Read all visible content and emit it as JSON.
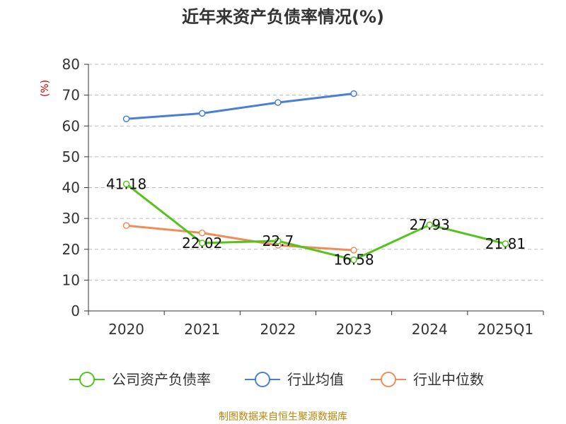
{
  "chart_data": {
    "type": "line",
    "title": "近年来资产负债率情况(%)",
    "ylabel": "(%)",
    "xlabel": "",
    "categories": [
      "2020",
      "2021",
      "2022",
      "2023",
      "2024",
      "2025Q1"
    ],
    "ylim": [
      0,
      80
    ],
    "yticks": [
      0,
      10,
      20,
      30,
      40,
      50,
      60,
      70,
      80
    ],
    "grid": true,
    "legend_position": "bottom",
    "series": [
      {
        "name": "公司资产负债率",
        "color": "#52c41a",
        "values": [
          41.18,
          22.02,
          22.7,
          16.58,
          27.93,
          21.81
        ],
        "labels": [
          "41.18",
          "22.02",
          "22.7",
          "16.58",
          "27.93",
          "21.81"
        ]
      },
      {
        "name": "行业均值",
        "color": "#4a7fd6",
        "values": [
          62.3,
          64.1,
          67.6,
          70.5,
          null,
          null
        ]
      },
      {
        "name": "行业中位数",
        "color": "#f08c5a",
        "values": [
          27.7,
          25.3,
          21.3,
          19.7,
          null,
          null
        ]
      }
    ],
    "source": "制图数据来自恒生聚源数据库"
  }
}
